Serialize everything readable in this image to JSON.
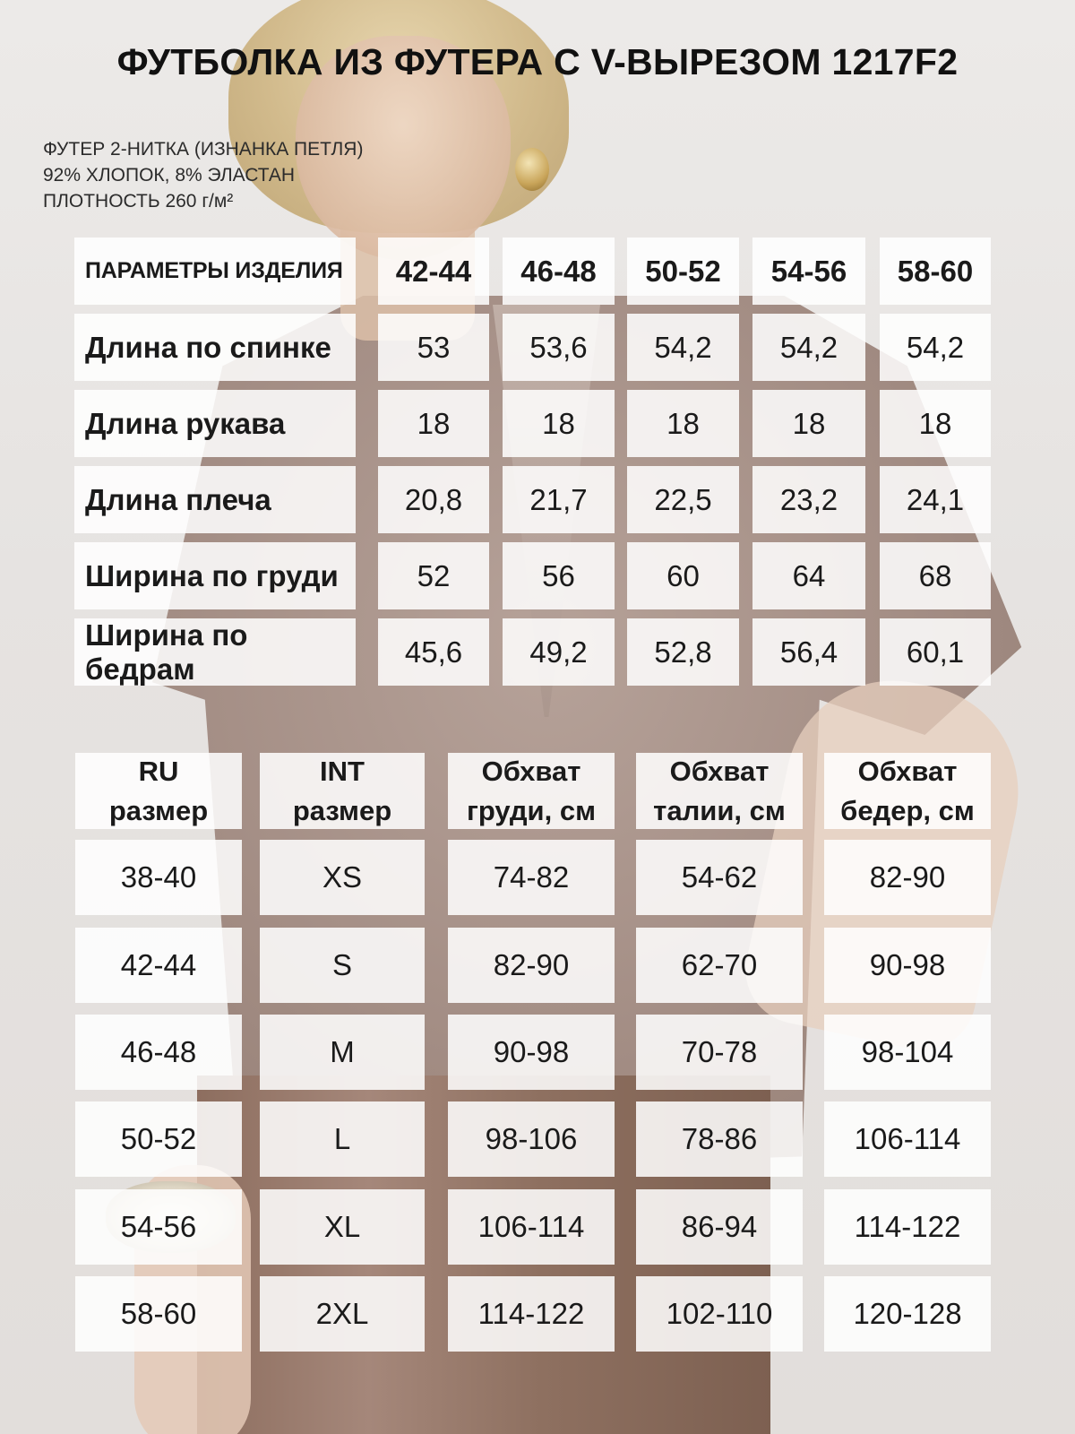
{
  "title": "ФУТБОЛКА ИЗ ФУТЕРА С V-ВЫРЕЗОМ 1217F2",
  "specs": [
    "ФУТЕР 2-НИТКА (ИЗНАНКА ПЕТЛЯ)",
    "92% ХЛОПОК, 8% ЭЛАСТАН",
    "ПЛОТНОСТЬ 260 г/м²"
  ],
  "product_table": {
    "header_label": "ПАРАМЕТРЫ ИЗДЕЛИЯ",
    "sizes": [
      "42-44",
      "46-48",
      "50-52",
      "54-56",
      "58-60"
    ],
    "rows": [
      {
        "label": "Длина по спинке",
        "values": [
          "53",
          "53,6",
          "54,2",
          "54,2",
          "54,2"
        ]
      },
      {
        "label": "Длина рукава",
        "values": [
          "18",
          "18",
          "18",
          "18",
          "18"
        ]
      },
      {
        "label": "Длина плеча",
        "values": [
          "20,8",
          "21,7",
          "22,5",
          "23,2",
          "24,1"
        ]
      },
      {
        "label": "Ширина по груди",
        "values": [
          "52",
          "56",
          "60",
          "64",
          "68"
        ]
      },
      {
        "label": "Ширина по бедрам",
        "values": [
          "45,6",
          "49,2",
          "52,8",
          "56,4",
          "60,1"
        ]
      }
    ]
  },
  "size_table": {
    "headers": [
      [
        "RU",
        "размер"
      ],
      [
        "INT",
        "размер"
      ],
      [
        "Обхват",
        "груди, см"
      ],
      [
        "Обхват",
        "талии, см"
      ],
      [
        "Обхват",
        "бедер, см"
      ]
    ],
    "rows": [
      [
        "38-40",
        "XS",
        "74-82",
        "54-62",
        "82-90"
      ],
      [
        "42-44",
        "S",
        "82-90",
        "62-70",
        "90-98"
      ],
      [
        "46-48",
        "M",
        "90-98",
        "70-78",
        "98-104"
      ],
      [
        "50-52",
        "L",
        "98-106",
        "78-86",
        "106-114"
      ],
      [
        "54-56",
        "XL",
        "106-114",
        "86-94",
        "114-122"
      ],
      [
        "58-60",
        "2XL",
        "114-122",
        "102-110",
        "120-128"
      ]
    ]
  }
}
